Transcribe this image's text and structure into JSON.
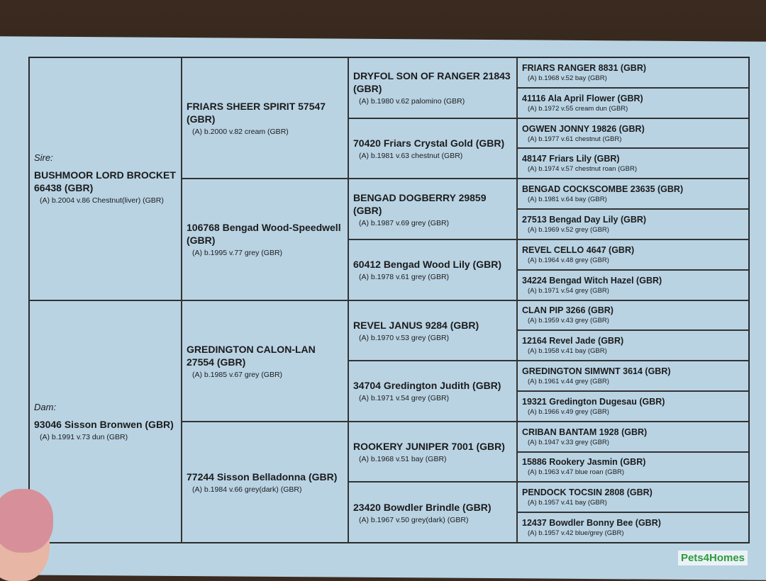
{
  "sire": {
    "role": "Sire:",
    "name": "BUSHMOOR LORD BROCKET 66438 (GBR)",
    "details": "(A) b.2004 v.86 Chestnut(liver) (GBR)"
  },
  "dam": {
    "role": "Dam:",
    "name": "93046 Sisson Bronwen (GBR)",
    "details": "(A) b.1991 v.73 dun (GBR)"
  },
  "gen2": [
    {
      "name": "FRIARS SHEER SPIRIT 57547 (GBR)",
      "details": "(A) b.2000 v.82 cream (GBR)"
    },
    {
      "name": "106768 Bengad Wood-Speedwell (GBR)",
      "details": "(A) b.1995 v.77 grey (GBR)"
    },
    {
      "name": "GREDINGTON CALON-LAN 27554 (GBR)",
      "details": "(A) b.1985 v.67 grey (GBR)"
    },
    {
      "name": "77244 Sisson Belladonna (GBR)",
      "details": "(A) b.1984 v.66 grey(dark) (GBR)"
    }
  ],
  "gen3": [
    {
      "name": "DRYFOL SON OF RANGER 21843 (GBR)",
      "details": "(A) b.1980 v.62 palomino (GBR)"
    },
    {
      "name": "70420 Friars Crystal Gold (GBR)",
      "details": "(A) b.1981 v.63 chestnut (GBR)"
    },
    {
      "name": "BENGAD DOGBERRY 29859 (GBR)",
      "details": "(A) b.1987 v.69 grey (GBR)"
    },
    {
      "name": "60412 Bengad Wood Lily (GBR)",
      "details": "(A) b.1978 v.61 grey (GBR)"
    },
    {
      "name": "REVEL JANUS 9284 (GBR)",
      "details": "(A) b.1970 v.53 grey (GBR)"
    },
    {
      "name": "34704 Gredington Judith (GBR)",
      "details": "(A) b.1971 v.54 grey (GBR)"
    },
    {
      "name": "ROOKERY JUNIPER 7001 (GBR)",
      "details": "(A) b.1968 v.51 bay (GBR)"
    },
    {
      "name": "23420 Bowdler Brindle (GBR)",
      "details": "(A) b.1967 v.50 grey(dark) (GBR)"
    }
  ],
  "gen4": [
    {
      "name": "FRIARS RANGER 8831 (GBR)",
      "details": "(A) b.1968 v.52 bay (GBR)"
    },
    {
      "name": "41116 Ala April Flower (GBR)",
      "details": "(A) b.1972 v.55 cream dun (GBR)"
    },
    {
      "name": "OGWEN JONNY 19826 (GBR)",
      "details": "(A) b.1977 v.61 chestnut (GBR)"
    },
    {
      "name": "48147 Friars Lily (GBR)",
      "details": "(A) b.1974 v.57 chestnut roan (GBR)"
    },
    {
      "name": "BENGAD COCKSCOMBE 23635 (GBR)",
      "details": "(A) b.1981 v.64 bay (GBR)"
    },
    {
      "name": "27513 Bengad Day Lily (GBR)",
      "details": "(A) b.1969 v.52 grey (GBR)"
    },
    {
      "name": "REVEL CELLO 4647 (GBR)",
      "details": "(A) b.1964 v.48 grey (GBR)"
    },
    {
      "name": "34224 Bengad Witch Hazel (GBR)",
      "details": "(A) b.1971 v.54 grey (GBR)"
    },
    {
      "name": "CLAN PIP 3266 (GBR)",
      "details": "(A) b.1959 v.43 grey (GBR)"
    },
    {
      "name": "12164 Revel Jade (GBR)",
      "details": "(A) b.1958 v.41 bay (GBR)"
    },
    {
      "name": "GREDINGTON SIMWNT 3614 (GBR)",
      "details": "(A) b.1961 v.44 grey (GBR)"
    },
    {
      "name": "19321 Gredington Dugesau (GBR)",
      "details": "(A) b.1966 v.49 grey (GBR)"
    },
    {
      "name": "CRIBAN BANTAM 1928 (GBR)",
      "details": "(A) b.1947 v.33 grey (GBR)"
    },
    {
      "name": "15886 Rookery Jasmin (GBR)",
      "details": "(A) b.1963 v.47 blue roan (GBR)"
    },
    {
      "name": "PENDOCK TOCSIN 2808 (GBR)",
      "details": "(A) b.1957 v.41 bay (GBR)"
    },
    {
      "name": "12437 Bowdler Bonny Bee (GBR)",
      "details": "(A) b.1957 v.42 blue/grey (GBR)"
    }
  ],
  "watermark": "Pets4Homes",
  "colors": {
    "paper": "#b9d3e3",
    "ink": "#1b1b1b",
    "logo": "#2f9a3c"
  }
}
